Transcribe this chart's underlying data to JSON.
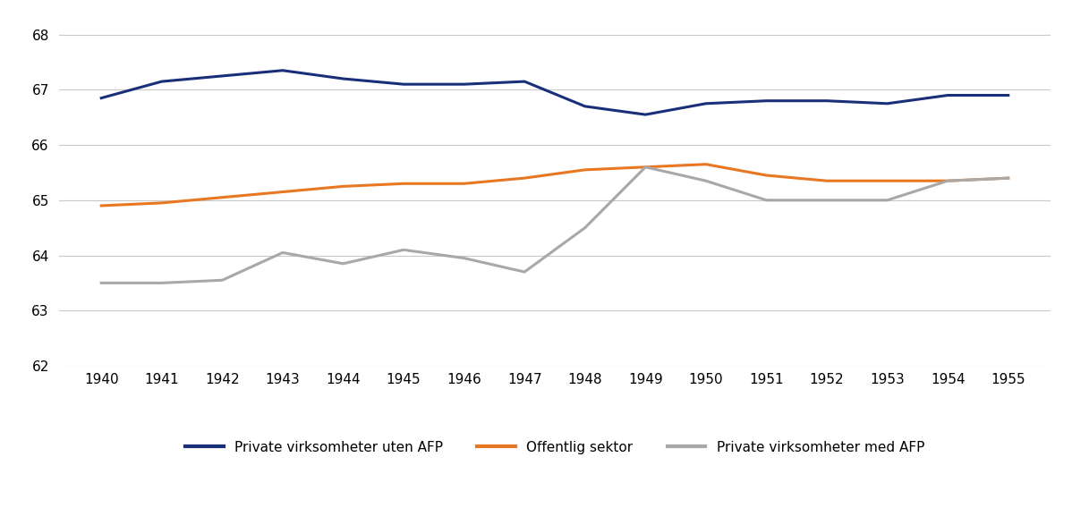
{
  "years": [
    1940,
    1941,
    1942,
    1943,
    1944,
    1945,
    1946,
    1947,
    1948,
    1949,
    1950,
    1951,
    1952,
    1953,
    1954,
    1955
  ],
  "private_uten_afp": [
    66.85,
    67.15,
    67.25,
    67.35,
    67.2,
    67.1,
    67.1,
    67.15,
    66.7,
    66.55,
    66.75,
    66.8,
    66.8,
    66.75,
    66.9,
    66.9
  ],
  "offentlig_sektor": [
    64.9,
    64.95,
    65.05,
    65.15,
    65.25,
    65.3,
    65.3,
    65.4,
    65.55,
    65.6,
    65.65,
    65.45,
    65.35,
    65.35,
    65.35,
    65.4
  ],
  "private_med_afp": [
    63.5,
    63.5,
    63.55,
    64.05,
    63.85,
    64.1,
    63.95,
    63.7,
    64.5,
    65.6,
    65.35,
    65.0,
    65.0,
    65.0,
    65.35,
    65.4
  ],
  "colors": {
    "private_uten_afp": "#1a2f7a",
    "offentlig_sektor": "#e87722",
    "private_med_afp": "#a8a8a8"
  },
  "legend_labels": [
    "Private virksomheter uten AFP",
    "Offentlig sektor",
    "Private virksomheter med AFP"
  ],
  "ylim": [
    62,
    68.35
  ],
  "yticks": [
    62,
    63,
    64,
    65,
    66,
    67,
    68
  ],
  "line_width": 2.2,
  "background_color": "#ffffff",
  "font_family": "Arial"
}
